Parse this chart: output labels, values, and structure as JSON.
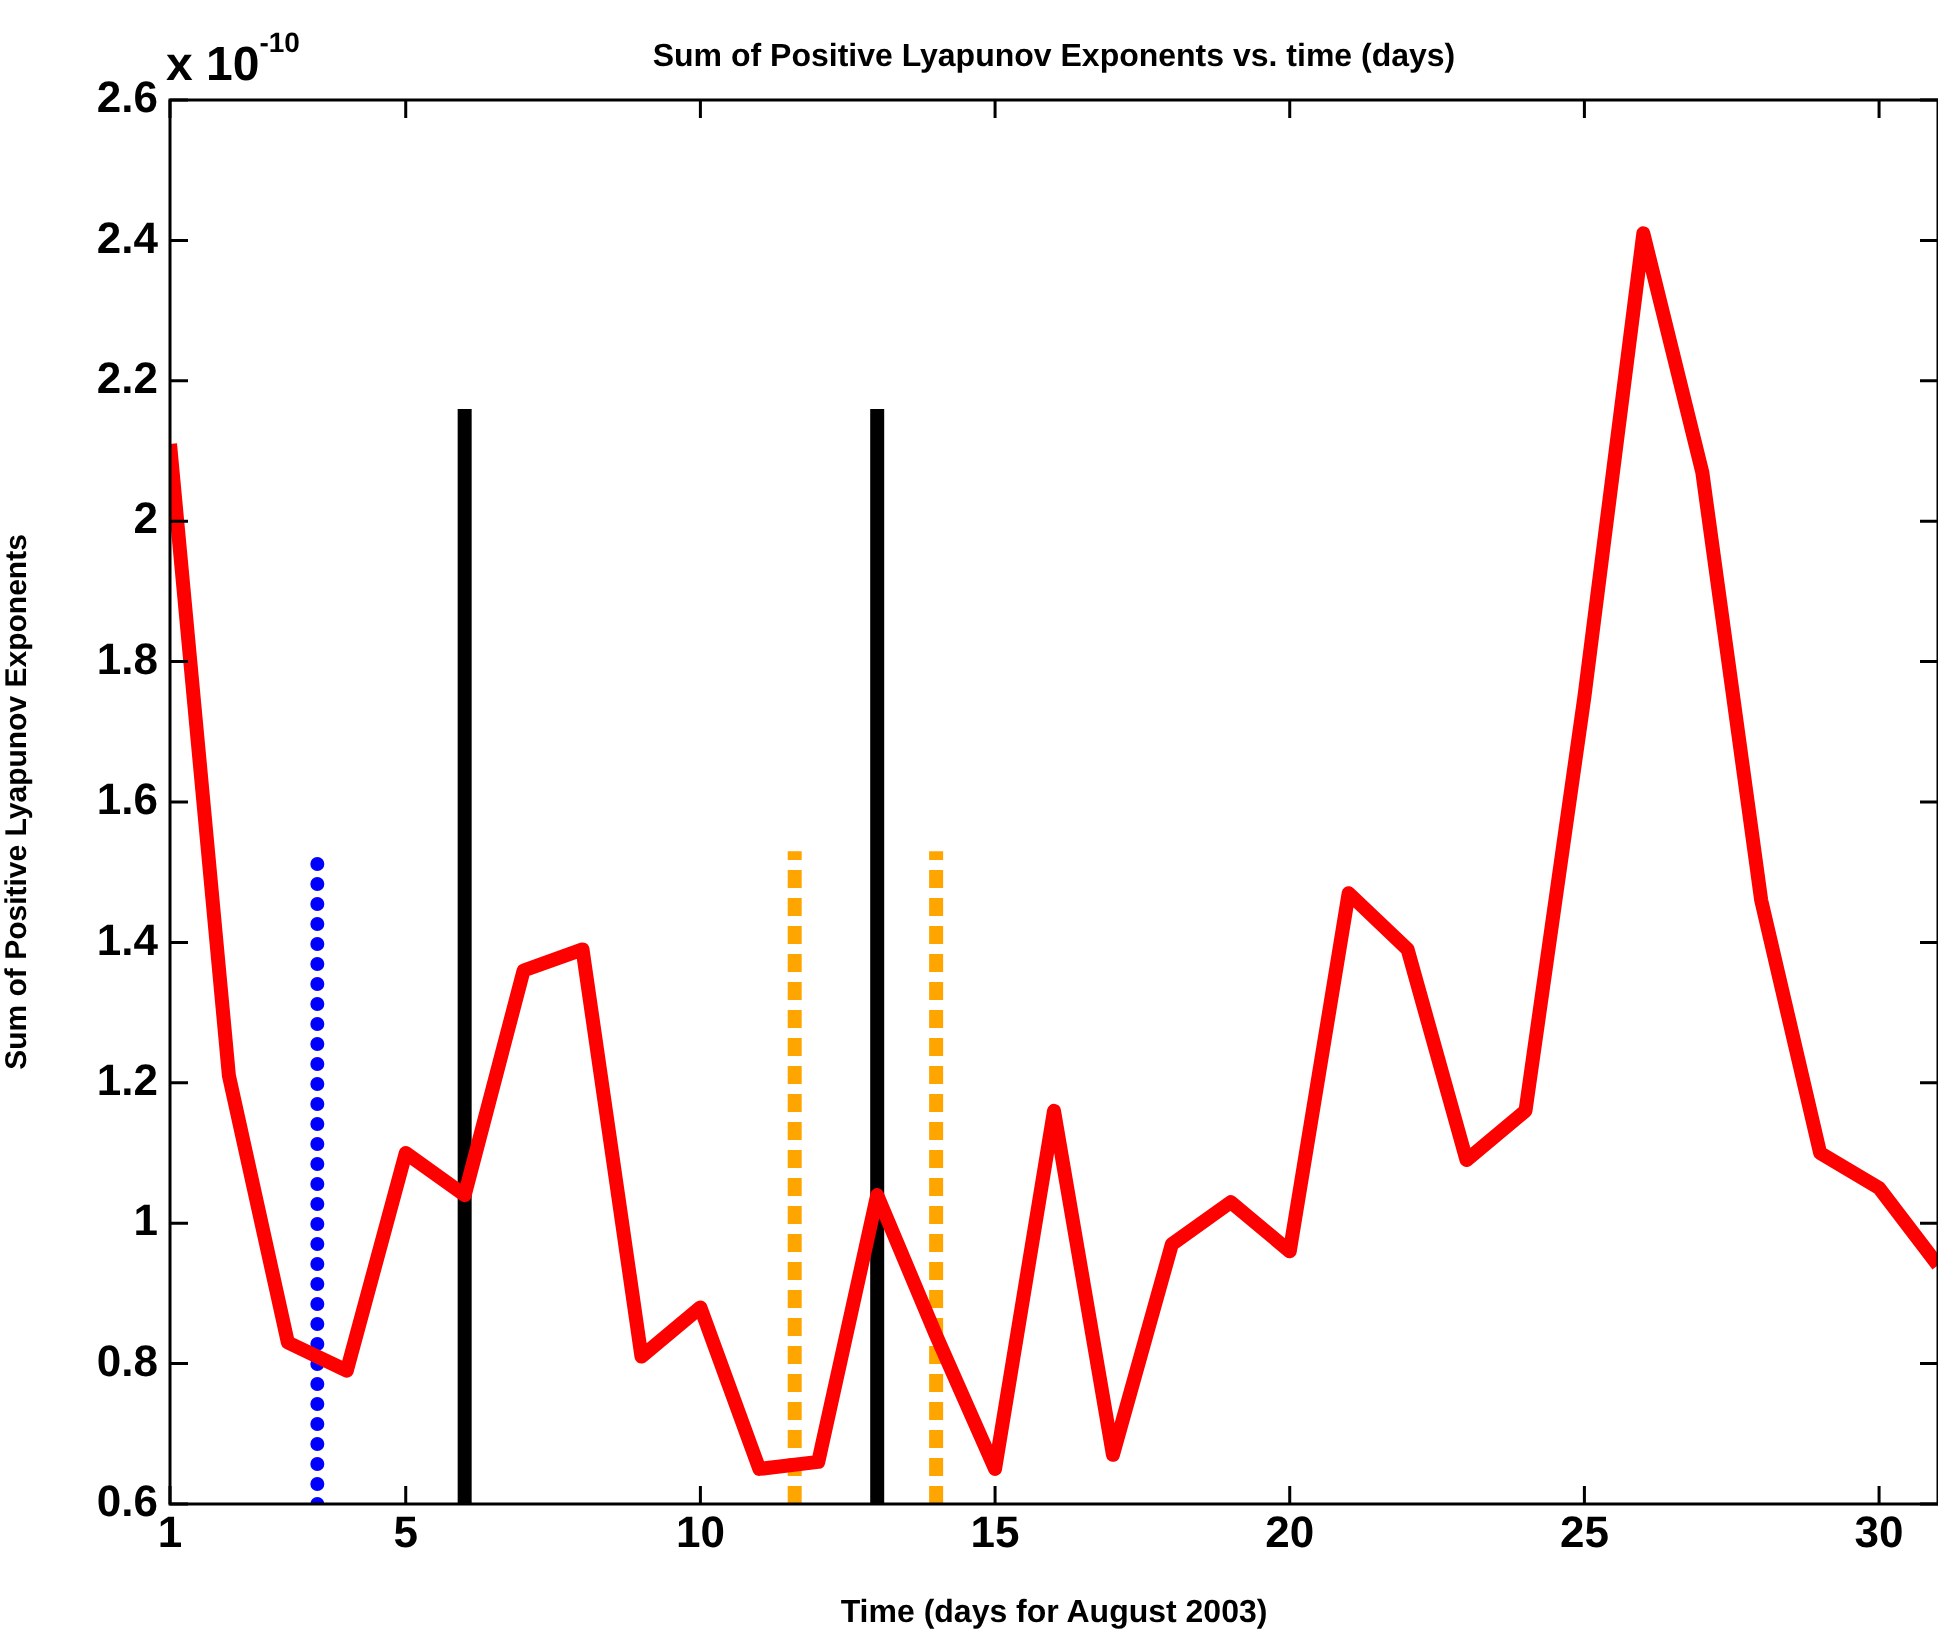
{
  "chart_data": {
    "type": "line",
    "title": "Sum of Positive Lyapunov Exponents vs. time (days)",
    "xlabel": "Time (days for August 2003)",
    "ylabel": "Sum of Positive Lyapunov Exponents",
    "annotations": [
      "x 10$^{-10}$"
    ],
    "xlim": [
      1,
      31
    ],
    "xticks": [
      1,
      5,
      10,
      15,
      20,
      25,
      30
    ],
    "ylim": [
      0.6,
      2.6
    ],
    "yticks": [
      0.6,
      0.8,
      1,
      1.2,
      1.4,
      1.6,
      1.8,
      2,
      2.2,
      2.4,
      2.6
    ],
    "grid": false,
    "legend": false,
    "marker": "none",
    "series": [
      {
        "color": "#ff0000",
        "line_style": "solid",
        "x": [
          1,
          2,
          3,
          4,
          5,
          6,
          7,
          8,
          9,
          10,
          11,
          12,
          13,
          14,
          15,
          16,
          17,
          18,
          19,
          20,
          21,
          22,
          23,
          24,
          25,
          26,
          27,
          28,
          29,
          30,
          31
        ],
        "values": [
          2.11,
          1.21,
          0.83,
          0.79,
          1.1,
          1.04,
          1.36,
          1.39,
          0.81,
          0.88,
          0.65,
          0.66,
          1.04,
          0.84,
          0.65,
          1.16,
          0.67,
          0.97,
          1.03,
          0.96,
          1.47,
          1.39,
          1.09,
          1.16,
          1.75,
          2.41,
          2.07,
          1.46,
          1.1,
          1.05,
          0.94
        ]
      },
      {
        "color": "#0000ff",
        "line_style": "dotted",
        "x": [
          3.5,
          3.5
        ],
        "values": [
          0.6,
          1.52
        ]
      },
      {
        "color": "#000000",
        "line_style": "solid",
        "x": [
          6,
          6
        ],
        "values": [
          0.6,
          2.16
        ]
      },
      {
        "color": "#000000",
        "line_style": "solid",
        "x": [
          13,
          13
        ],
        "values": [
          0.6,
          2.16
        ]
      },
      {
        "color": "#ffa500",
        "line_style": "dashed",
        "x": [
          11.6,
          11.6
        ],
        "values": [
          0.6,
          1.53
        ]
      },
      {
        "color": "#ffa500",
        "line_style": "dashed",
        "x": [
          14,
          14
        ],
        "values": [
          0.6,
          1.53
        ]
      }
    ]
  }
}
